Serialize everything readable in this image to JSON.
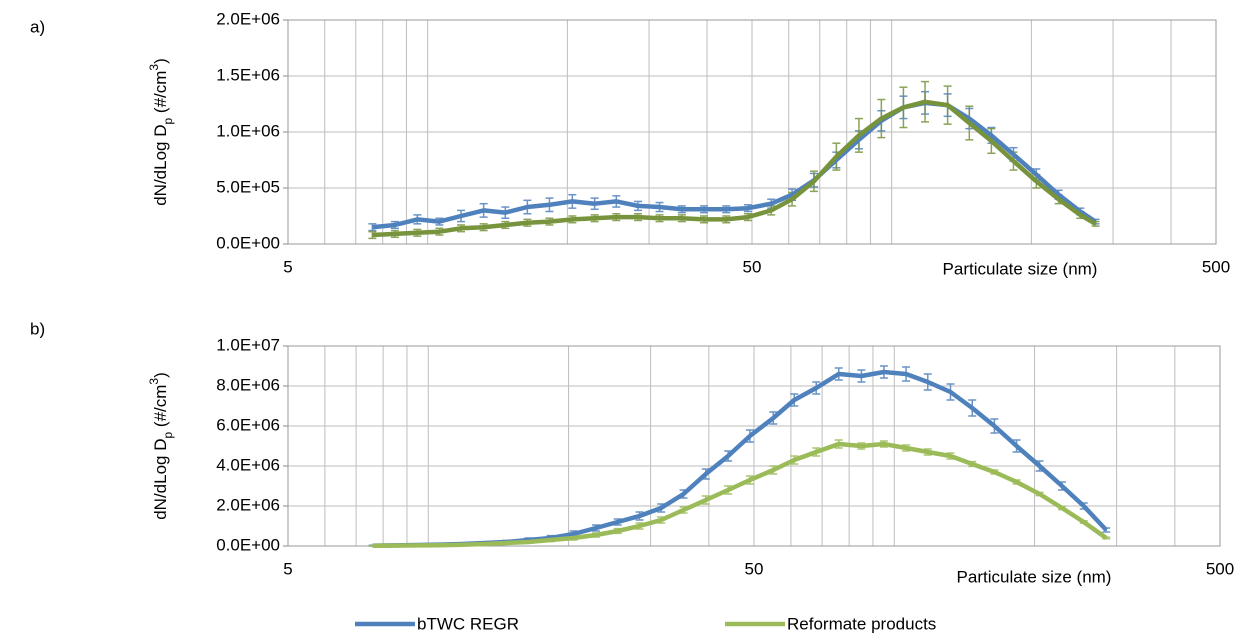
{
  "chart_data": [
    {
      "type": "line",
      "panel_label": "a)",
      "xlabel": "Particulate size (nm)",
      "ylabel": [
        "dN/dLog D",
        "p",
        " (#/cm",
        "3",
        ")"
      ],
      "log_x": true,
      "grid": true,
      "x": [
        7.6,
        8.5,
        9.5,
        10.6,
        11.8,
        13.2,
        14.7,
        16.4,
        18.3,
        20.5,
        22.9,
        25.5,
        28.4,
        31.6,
        35.3,
        39.4,
        44,
        49,
        55,
        61,
        68,
        76,
        85,
        95,
        106,
        118,
        132,
        147,
        164,
        183,
        205,
        229,
        255,
        275
      ],
      "xlim": [
        5,
        500
      ],
      "xticks": [
        5,
        50,
        500
      ],
      "xminorticks": [
        6,
        7,
        8,
        9,
        10,
        20,
        30,
        40,
        60,
        70,
        80,
        90,
        100,
        200,
        300,
        400
      ],
      "ylim": [
        0,
        2000000
      ],
      "yticks": [
        {
          "value": 0,
          "label": "0.0E+00"
        },
        {
          "value": 500000,
          "label": "5.0E+05"
        },
        {
          "value": 1000000,
          "label": "1.0E+06"
        },
        {
          "value": 1500000,
          "label": "1.5E+06"
        },
        {
          "value": 2000000,
          "label": "2.0E+06"
        }
      ],
      "series": [
        {
          "name": "bTWC REGR",
          "color": "#4f81bd",
          "values": [
            150000,
            170000,
            220000,
            200000,
            250000,
            300000,
            280000,
            330000,
            350000,
            380000,
            360000,
            380000,
            340000,
            330000,
            310000,
            310000,
            310000,
            320000,
            360000,
            440000,
            570000,
            750000,
            930000,
            1100000,
            1220000,
            1260000,
            1240000,
            1120000,
            970000,
            800000,
            620000,
            440000,
            290000,
            200000
          ],
          "errors": [
            30000,
            30000,
            40000,
            30000,
            50000,
            60000,
            50000,
            60000,
            60000,
            60000,
            50000,
            50000,
            40000,
            40000,
            30000,
            30000,
            30000,
            30000,
            40000,
            50000,
            60000,
            70000,
            80000,
            90000,
            100000,
            100000,
            100000,
            90000,
            70000,
            60000,
            50000,
            40000,
            30000,
            20000
          ]
        },
        {
          "name": "Reformate products",
          "color": "#77933c",
          "values": [
            80000,
            90000,
            100000,
            110000,
            140000,
            150000,
            170000,
            190000,
            200000,
            220000,
            230000,
            240000,
            240000,
            230000,
            230000,
            220000,
            220000,
            240000,
            300000,
            400000,
            560000,
            780000,
            970000,
            1120000,
            1220000,
            1270000,
            1240000,
            1080000,
            920000,
            740000,
            560000,
            400000,
            260000,
            180000
          ],
          "errors": [
            30000,
            30000,
            30000,
            30000,
            30000,
            30000,
            30000,
            30000,
            30000,
            30000,
            30000,
            30000,
            30000,
            30000,
            30000,
            30000,
            30000,
            30000,
            40000,
            60000,
            90000,
            120000,
            150000,
            170000,
            180000,
            180000,
            170000,
            150000,
            110000,
            80000,
            60000,
            40000,
            30000,
            20000
          ]
        }
      ]
    },
    {
      "type": "line",
      "panel_label": "b)",
      "xlabel": "Particulate size (nm)",
      "ylabel": [
        "dN/dLog D",
        "p",
        " (#/cm",
        "3",
        ")"
      ],
      "log_x": true,
      "grid": true,
      "legend": "bottom",
      "x": [
        7.6,
        8.5,
        9.5,
        10.6,
        11.8,
        13.2,
        14.7,
        16.4,
        18.3,
        20.5,
        22.9,
        25.5,
        28.4,
        31.6,
        35.3,
        39.4,
        44,
        49,
        55,
        61,
        68,
        76,
        85,
        95,
        106,
        118,
        132,
        147,
        164,
        183,
        205,
        229,
        255,
        285
      ],
      "xlim": [
        5,
        500
      ],
      "xticks": [
        5,
        50,
        500
      ],
      "xminorticks": [
        6,
        7,
        8,
        9,
        10,
        20,
        30,
        40,
        60,
        70,
        80,
        90,
        100,
        200,
        300,
        400
      ],
      "ylim": [
        0,
        10000000
      ],
      "yticks": [
        {
          "value": 0,
          "label": "0.0E+00"
        },
        {
          "value": 2000000,
          "label": "2.0E+06"
        },
        {
          "value": 4000000,
          "label": "4.0E+06"
        },
        {
          "value": 6000000,
          "label": "6.0E+06"
        },
        {
          "value": 8000000,
          "label": "8.0E+06"
        },
        {
          "value": 10000000,
          "label": "1.0E+07"
        }
      ],
      "series": [
        {
          "name": "bTWC REGR",
          "color": "#4f81bd",
          "values": [
            20000,
            30000,
            50000,
            70000,
            100000,
            150000,
            200000,
            300000,
            400000,
            600000,
            900000,
            1200000,
            1500000,
            1900000,
            2600000,
            3600000,
            4500000,
            5500000,
            6400000,
            7300000,
            7900000,
            8600000,
            8500000,
            8700000,
            8600000,
            8200000,
            7700000,
            6900000,
            6000000,
            5000000,
            4000000,
            3000000,
            2000000,
            800000
          ],
          "errors": [
            20000,
            20000,
            30000,
            40000,
            50000,
            60000,
            80000,
            100000,
            120000,
            150000,
            150000,
            150000,
            200000,
            200000,
            200000,
            250000,
            250000,
            300000,
            300000,
            300000,
            300000,
            300000,
            300000,
            300000,
            350000,
            400000,
            400000,
            400000,
            350000,
            300000,
            250000,
            200000,
            150000,
            100000
          ]
        },
        {
          "name": "Reformate products",
          "color": "#9bbb59",
          "values": [
            10000,
            20000,
            30000,
            40000,
            60000,
            100000,
            150000,
            200000,
            300000,
            400000,
            550000,
            750000,
            1000000,
            1300000,
            1800000,
            2300000,
            2800000,
            3300000,
            3800000,
            4300000,
            4700000,
            5100000,
            5000000,
            5100000,
            4900000,
            4700000,
            4500000,
            4100000,
            3700000,
            3200000,
            2600000,
            1900000,
            1200000,
            400000
          ],
          "errors": [
            10000,
            10000,
            20000,
            20000,
            30000,
            40000,
            50000,
            60000,
            80000,
            100000,
            100000,
            120000,
            150000,
            150000,
            150000,
            200000,
            200000,
            200000,
            200000,
            200000,
            200000,
            200000,
            150000,
            150000,
            150000,
            150000,
            150000,
            120000,
            100000,
            100000,
            80000,
            80000,
            60000,
            40000
          ]
        }
      ]
    }
  ]
}
